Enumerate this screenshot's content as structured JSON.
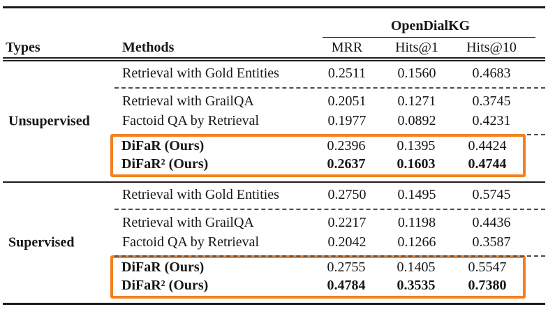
{
  "accent_color": "#F4801F",
  "header": {
    "group": "OpenDialKG",
    "types": "Types",
    "methods": "Methods",
    "metrics": [
      "MRR",
      "Hits@1",
      "Hits@10"
    ]
  },
  "sections": [
    {
      "type": "Unsupervised",
      "groups": [
        {
          "highlight": false,
          "rows": [
            {
              "method": "Retrieval with Gold Entities",
              "bold_method": false,
              "values": [
                "0.2511",
                "0.1560",
                "0.4683"
              ],
              "bold_values": false
            }
          ]
        },
        {
          "highlight": false,
          "rows": [
            {
              "method": "Retrieval with GrailQA",
              "bold_method": false,
              "values": [
                "0.2051",
                "0.1271",
                "0.3745"
              ],
              "bold_values": false
            },
            {
              "method": "Factoid QA by Retrieval",
              "bold_method": false,
              "values": [
                "0.1977",
                "0.0892",
                "0.4231"
              ],
              "bold_values": false
            }
          ]
        },
        {
          "highlight": true,
          "rows": [
            {
              "method": "DiFaR (Ours)",
              "bold_method": true,
              "values": [
                "0.2396",
                "0.1395",
                "0.4424"
              ],
              "bold_values": false
            },
            {
              "method": "DiFaR² (Ours)",
              "bold_method": true,
              "values": [
                "0.2637",
                "0.1603",
                "0.4744"
              ],
              "bold_values": true
            }
          ]
        }
      ]
    },
    {
      "type": "Supervised",
      "groups": [
        {
          "highlight": false,
          "rows": [
            {
              "method": "Retrieval with Gold Entities",
              "bold_method": false,
              "values": [
                "0.2750",
                "0.1495",
                "0.5745"
              ],
              "bold_values": false
            }
          ]
        },
        {
          "highlight": false,
          "rows": [
            {
              "method": "Retrieval with GrailQA",
              "bold_method": false,
              "values": [
                "0.2217",
                "0.1198",
                "0.4436"
              ],
              "bold_values": false
            },
            {
              "method": "Factoid QA by Retrieval",
              "bold_method": false,
              "values": [
                "0.2042",
                "0.1266",
                "0.3587"
              ],
              "bold_values": false
            }
          ]
        },
        {
          "highlight": true,
          "rows": [
            {
              "method": "DiFaR (Ours)",
              "bold_method": true,
              "values": [
                "0.2755",
                "0.1405",
                "0.5547"
              ],
              "bold_values": false
            },
            {
              "method": "DiFaR² (Ours)",
              "bold_method": true,
              "values": [
                "0.4784",
                "0.3535",
                "0.7380"
              ],
              "bold_values": true
            }
          ]
        }
      ]
    }
  ]
}
